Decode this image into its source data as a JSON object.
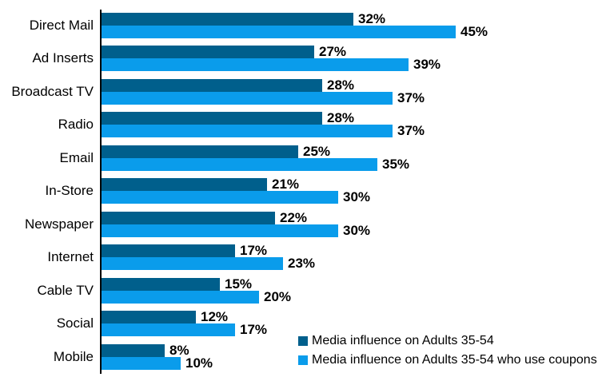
{
  "chart_data": {
    "type": "bar",
    "orientation": "horizontal",
    "title": "",
    "categories": [
      "Direct Mail",
      "Ad Inserts",
      "Broadcast TV",
      "Radio",
      "Email",
      "In-Store",
      "Newspaper",
      "Internet",
      "Cable TV",
      "Social",
      "Mobile"
    ],
    "series": [
      {
        "name": "Media influence on Adults 35-54",
        "color": "#005F8C",
        "values": [
          32,
          27,
          28,
          28,
          25,
          21,
          22,
          17,
          15,
          12,
          8
        ]
      },
      {
        "name": "Media influence on Adults 35-54 who use coupons",
        "color": "#0A9CEB",
        "values": [
          45,
          39,
          37,
          37,
          35,
          30,
          30,
          23,
          20,
          17,
          10
        ]
      }
    ],
    "value_suffix": "%",
    "data_labels": true,
    "xlim": [
      0,
      63
    ],
    "grid": false,
    "legend_position": "inside-bottom-right",
    "axis_color": "#000000",
    "label_color": "#000000"
  }
}
